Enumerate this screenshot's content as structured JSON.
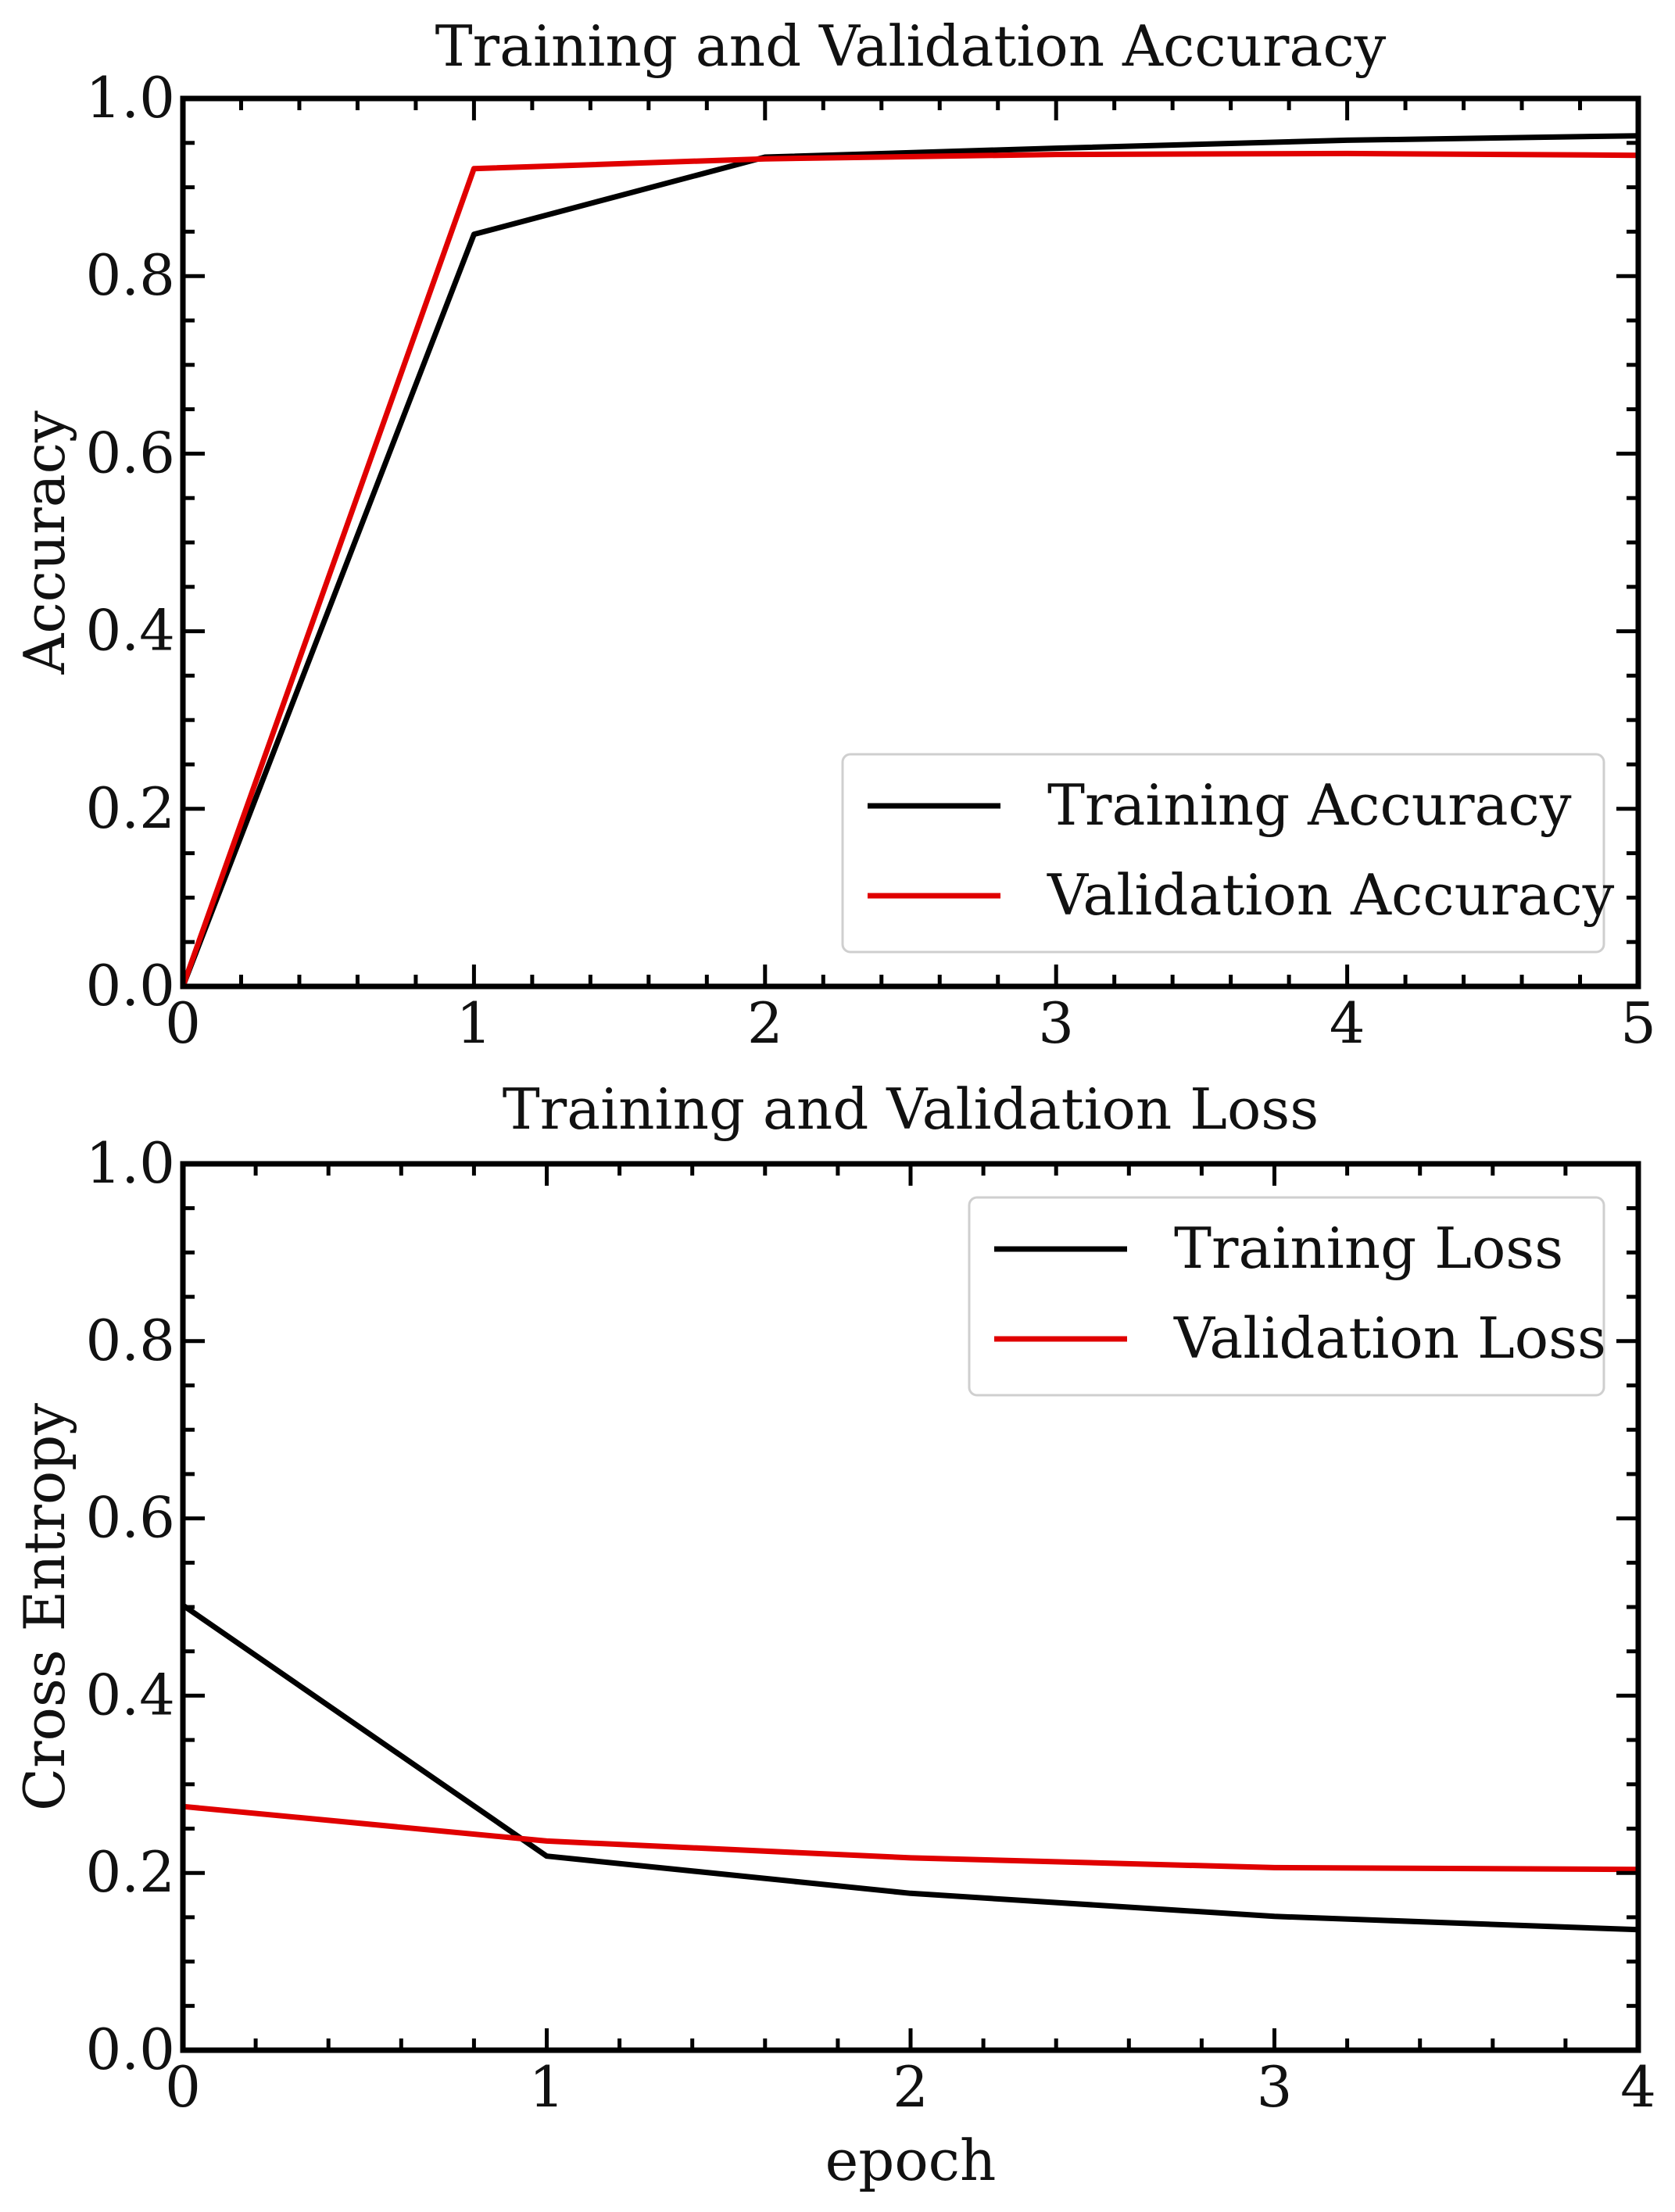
{
  "chart_data": [
    {
      "type": "line",
      "title": "Training and Validation Accuracy",
      "xlabel": "",
      "ylabel": "Accuracy",
      "xlim": [
        0,
        5
      ],
      "ylim": [
        0.0,
        1.0
      ],
      "xticks": [
        "0",
        "1",
        "2",
        "3",
        "4",
        "5"
      ],
      "yticks": [
        "0.0",
        "0.2",
        "0.4",
        "0.6",
        "0.8",
        "1.0"
      ],
      "legend_position": "lower-right",
      "series": [
        {
          "name": "Training Accuracy",
          "color": "#000000",
          "x": [
            0,
            1,
            2,
            3,
            4,
            5
          ],
          "y": [
            0.0,
            0.847,
            0.934,
            0.944,
            0.953,
            0.958
          ]
        },
        {
          "name": "Validation Accuracy",
          "color": "#e00000",
          "x": [
            0,
            1,
            2,
            3,
            4,
            5
          ],
          "y": [
            0.0,
            0.921,
            0.932,
            0.937,
            0.938,
            0.936
          ]
        }
      ]
    },
    {
      "type": "line",
      "title": "Training and Validation Loss",
      "xlabel": "epoch",
      "ylabel": "Cross Entropy",
      "xlim": [
        0,
        4
      ],
      "ylim": [
        0.0,
        1.0
      ],
      "xticks": [
        "0",
        "1",
        "2",
        "3",
        "4"
      ],
      "yticks": [
        "0.0",
        "0.2",
        "0.4",
        "0.6",
        "0.8",
        "1.0"
      ],
      "legend_position": "upper-right",
      "series": [
        {
          "name": "Training Loss",
          "color": "#000000",
          "x": [
            0,
            1,
            2,
            3,
            4
          ],
          "y": [
            0.502,
            0.219,
            0.177,
            0.151,
            0.136
          ]
        },
        {
          "name": "Validation Loss",
          "color": "#e00000",
          "x": [
            0,
            1,
            2,
            3,
            4
          ],
          "y": [
            0.275,
            0.236,
            0.217,
            0.206,
            0.204
          ]
        }
      ]
    }
  ]
}
